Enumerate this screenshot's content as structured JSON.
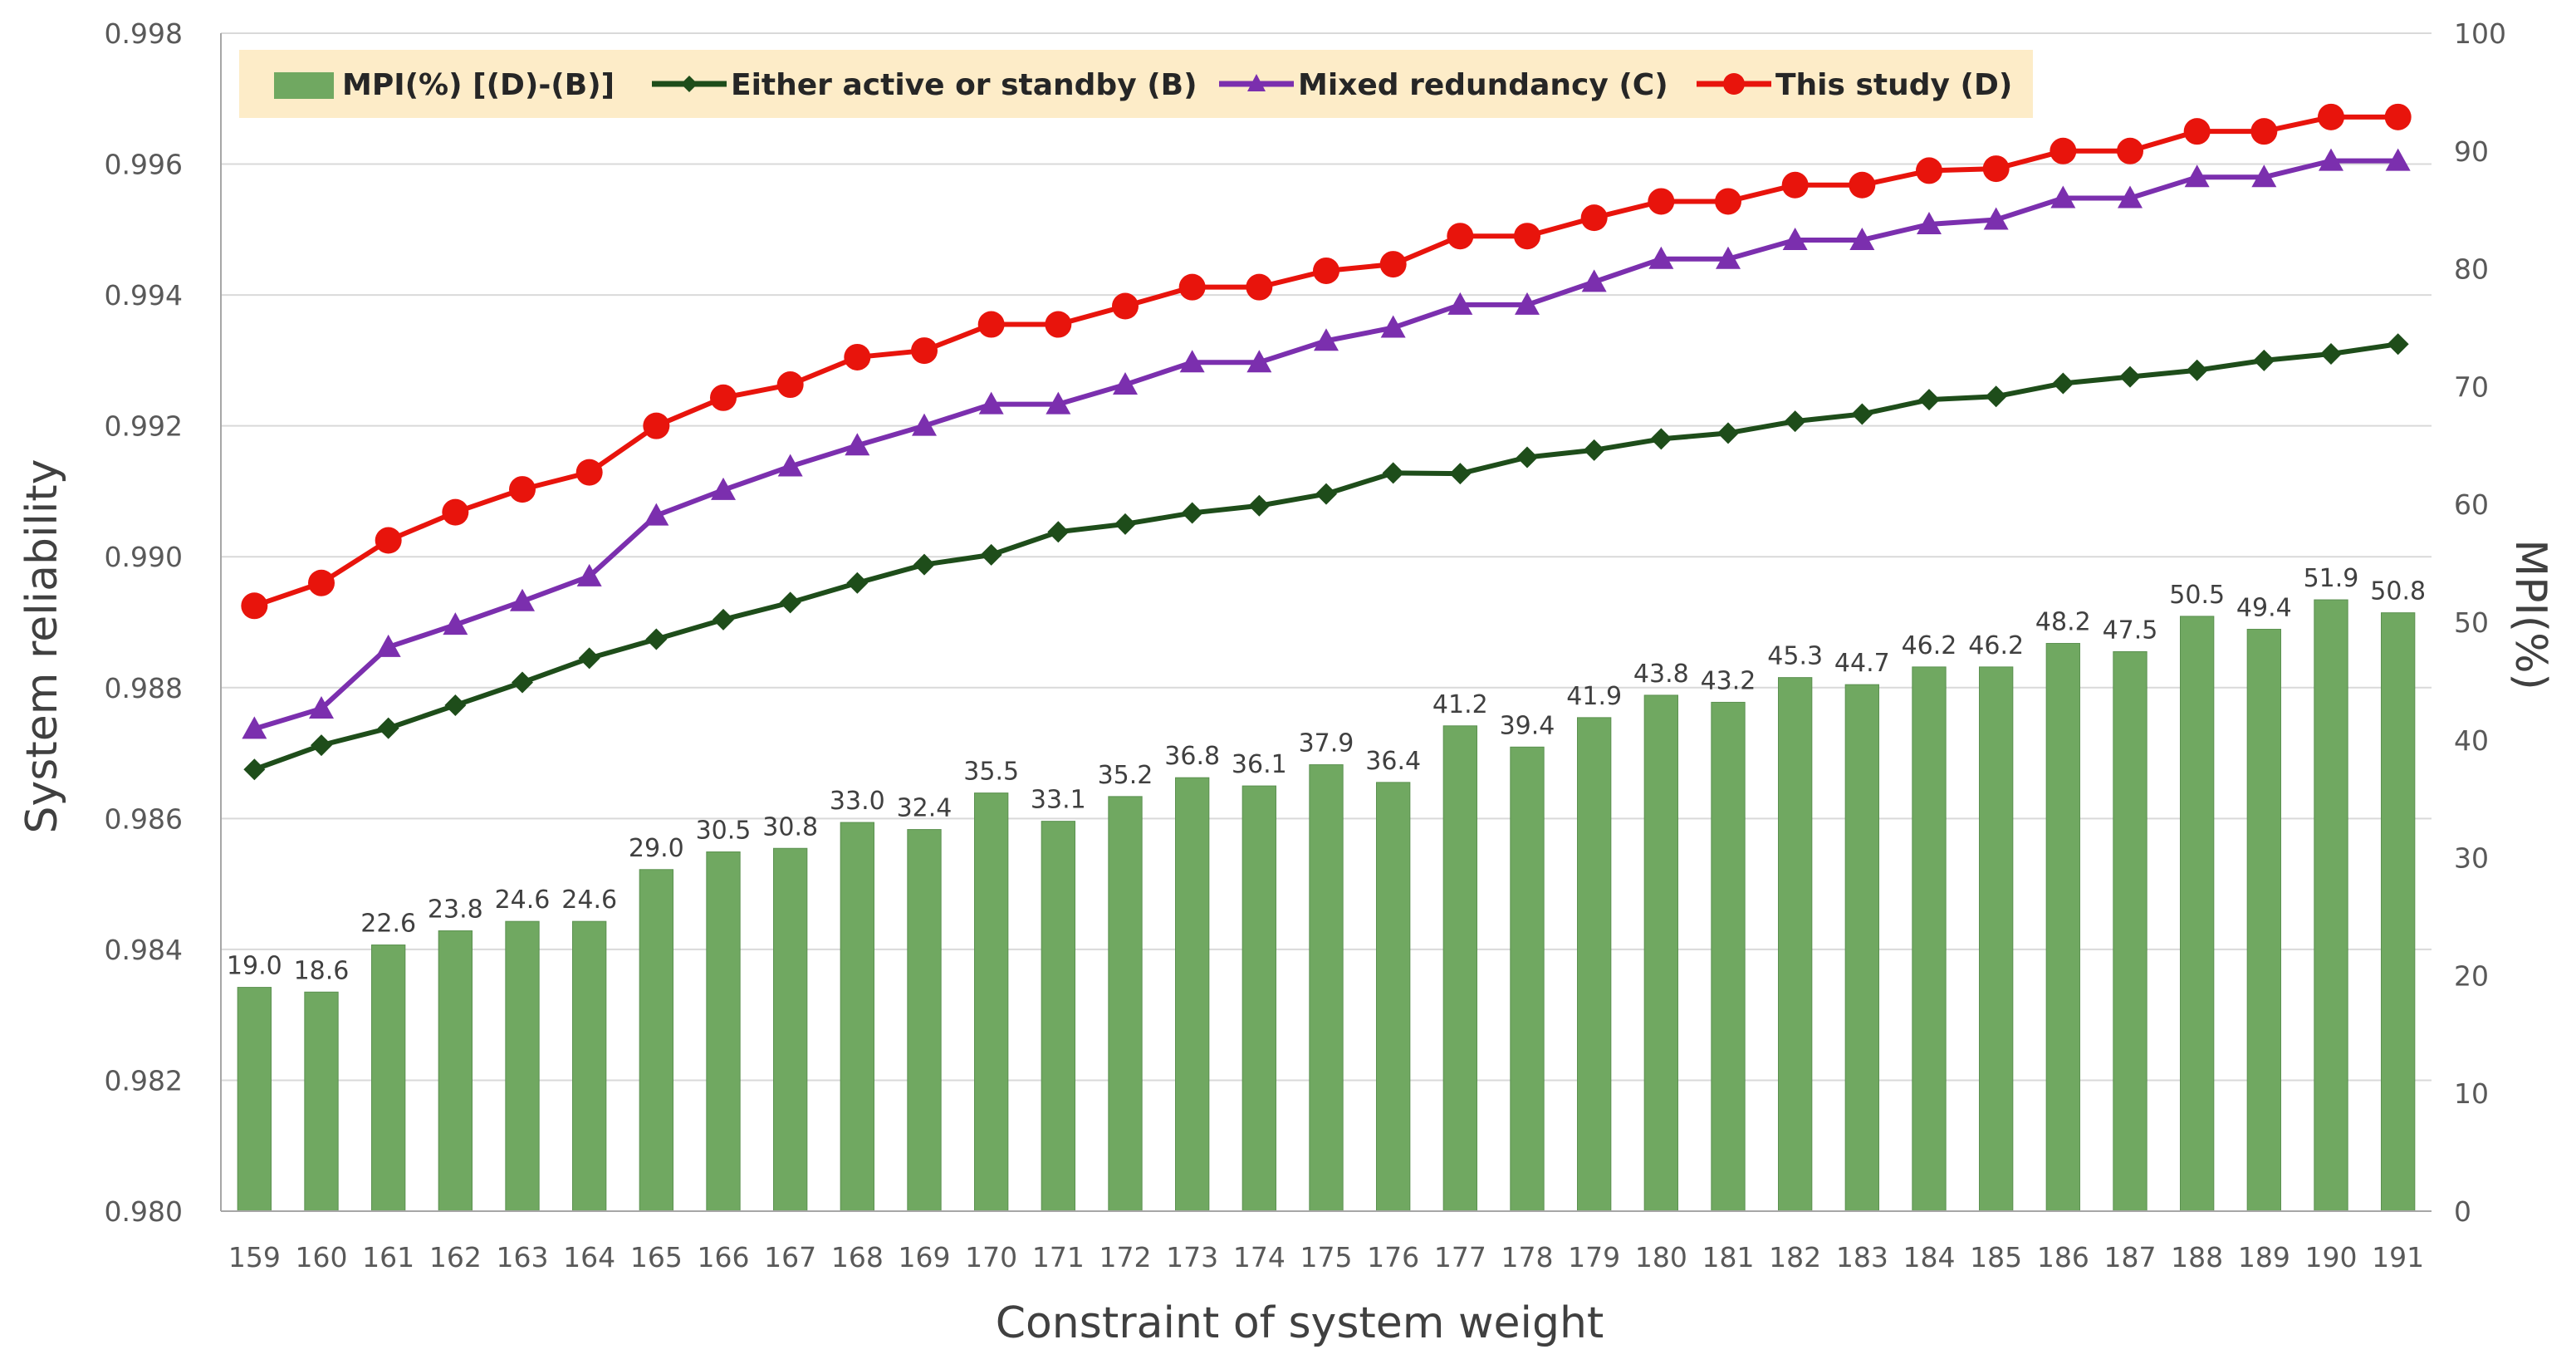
{
  "chart_data": {
    "type": "bar+line",
    "title": "",
    "xlabel": "Constraint of system weight",
    "ylabel": "System reliability",
    "y2label": "MPI(%)",
    "ylim": [
      0.98,
      0.998
    ],
    "yticks": [
      "0.980",
      "0.982",
      "0.984",
      "0.986",
      "0.988",
      "0.990",
      "0.992",
      "0.994",
      "0.996",
      "0.998"
    ],
    "y2lim": [
      0,
      100
    ],
    "y2ticks": [
      "0",
      "10",
      "20",
      "30",
      "40",
      "50",
      "60",
      "70",
      "80",
      "90",
      "100"
    ],
    "grid": "horizontal",
    "legend_position": "top-left",
    "categories": [
      "159",
      "160",
      "161",
      "162",
      "163",
      "164",
      "165",
      "166",
      "167",
      "168",
      "169",
      "170",
      "171",
      "172",
      "173",
      "174",
      "175",
      "176",
      "177",
      "178",
      "179",
      "180",
      "181",
      "182",
      "183",
      "184",
      "185",
      "186",
      "187",
      "188",
      "189",
      "190",
      "191"
    ],
    "bars": {
      "name": "MPI(%) [(D)-(B)]",
      "axis": "secondary",
      "color": "#70a861",
      "values": [
        19.0,
        18.6,
        22.6,
        23.8,
        24.6,
        24.6,
        29.0,
        30.5,
        30.8,
        33.0,
        32.4,
        35.5,
        33.1,
        35.2,
        36.8,
        36.1,
        37.9,
        36.4,
        41.2,
        39.4,
        41.9,
        43.8,
        43.2,
        45.3,
        44.7,
        46.2,
        46.2,
        48.2,
        47.5,
        50.5,
        49.4,
        51.9,
        50.8
      ],
      "labels": [
        "19.0",
        "18.6",
        "22.6",
        "23.8",
        "24.6",
        "24.6",
        "29.0",
        "30.5",
        "30.8",
        "33.0",
        "32.4",
        "35.5",
        "33.1",
        "35.2",
        "36.8",
        "36.1",
        "37.9",
        "36.4",
        "41.2",
        "39.4",
        "41.9",
        "43.8",
        "43.2",
        "45.3",
        "44.7",
        "46.2",
        "46.2",
        "48.2",
        "47.5",
        "50.5",
        "49.4",
        "51.9",
        "50.8"
      ]
    },
    "series": [
      {
        "name": "Either active or standby (B)",
        "axis": "primary",
        "color": "#1e4d1a",
        "marker": "diamond",
        "values": [
          0.98675,
          0.98712,
          0.98738,
          0.98773,
          0.98808,
          0.98845,
          0.98874,
          0.98904,
          0.9893,
          0.9896,
          0.98988,
          0.99003,
          0.99038,
          0.9905,
          0.99067,
          0.99078,
          0.99096,
          0.99128,
          0.99127,
          0.99152,
          0.99163,
          0.9918,
          0.99189,
          0.99207,
          0.99218,
          0.9924,
          0.99245,
          0.99265,
          0.99275,
          0.99285,
          0.993,
          0.9931,
          0.99325
        ]
      },
      {
        "name": "Mixed redundancy (C)",
        "axis": "primary",
        "color": "#7b2fae",
        "marker": "triangle",
        "values": [
          0.98737,
          0.98768,
          0.98862,
          0.98896,
          0.98932,
          0.9897,
          0.99063,
          0.99102,
          0.99138,
          0.9917,
          0.992,
          0.99233,
          0.99233,
          0.99263,
          0.99297,
          0.99297,
          0.9933,
          0.9935,
          0.99385,
          0.99385,
          0.9942,
          0.99455,
          0.99455,
          0.99484,
          0.99484,
          0.99508,
          0.99515,
          0.99548,
          0.99548,
          0.9958,
          0.9958,
          0.99605,
          0.99605
        ]
      },
      {
        "name": "This study (D)",
        "axis": "primary",
        "color": "#e8140c",
        "marker": "circle",
        "values": [
          0.98925,
          0.9896,
          0.99025,
          0.99068,
          0.99103,
          0.99129,
          0.992,
          0.99243,
          0.99263,
          0.99305,
          0.99315,
          0.99355,
          0.99355,
          0.99383,
          0.99412,
          0.99412,
          0.99437,
          0.99447,
          0.9949,
          0.9949,
          0.99518,
          0.99543,
          0.99543,
          0.99568,
          0.99568,
          0.9959,
          0.99593,
          0.9962,
          0.9962,
          0.9965,
          0.9965,
          0.99672,
          0.99672
        ]
      }
    ],
    "legend": {
      "background": "#fdecc8",
      "items": [
        {
          "label": "MPI(%) [(D)-(B)]",
          "symbol": "bar",
          "color": "#70a861"
        },
        {
          "label": "Either active or standby (B)",
          "symbol": "diamond",
          "color": "#1e4d1a"
        },
        {
          "label": "Mixed redundancy (C)",
          "symbol": "triangle",
          "color": "#7b2fae"
        },
        {
          "label": "This study (D)",
          "symbol": "circle",
          "color": "#e8140c"
        }
      ]
    }
  }
}
